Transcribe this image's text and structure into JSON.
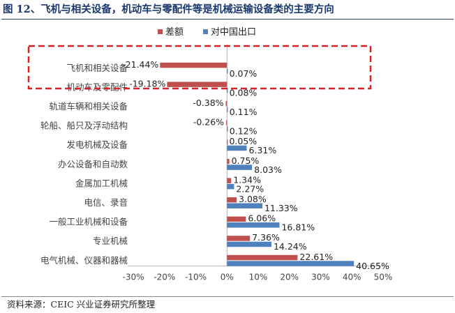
{
  "title": "图 12、飞机与相关设备，机动车与零配件等是机械运输设备类的主要方向",
  "source": "资料来源：CEIC    兴业证券研究所整理",
  "colors": {
    "deficit": "#c0504d",
    "export": "#4f81bd",
    "highlight": "#e02020",
    "title": "#1a3a6e"
  },
  "chart_data": {
    "type": "bar",
    "orientation": "horizontal",
    "title": "",
    "xlabel": "",
    "ylabel": "",
    "categories": [
      "飞机和相关设备",
      "机动车及零配件",
      "轨道车辆和相关设备",
      "轮船、船只及浮动结构",
      "发电机械及设备",
      "办公设备和自动数",
      "金属加工机械",
      "电信、录音",
      "一般工业机械和设备",
      "专业机械",
      "电气机械、仪器和器械"
    ],
    "series": [
      {
        "name": "差额",
        "values": [
          -21.44,
          -19.18,
          -0.38,
          -0.26,
          0.05,
          0.75,
          1.34,
          3.08,
          6.06,
          7.36,
          22.61
        ],
        "labels": [
          "-21.44%",
          "-19.18%",
          "-0.38%",
          "-0.26%",
          "0.05%",
          "0.75%",
          "1.34%",
          "3.08%",
          "6.06%",
          "7.36%",
          "22.61%"
        ]
      },
      {
        "name": "对中国出口",
        "values": [
          0.07,
          0.08,
          0.11,
          0.12,
          6.31,
          8.03,
          2.27,
          11.33,
          16.81,
          14.24,
          40.65
        ],
        "labels": [
          "0.07%",
          "0.08%",
          "0.11%",
          "0.12%",
          "6.31%",
          "8.03%",
          "2.27%",
          "11.33%",
          "16.81%",
          "14.24%",
          "40.65%"
        ]
      }
    ],
    "xlim": [
      -30,
      50
    ],
    "xticks": [
      -30,
      -20,
      -10,
      0,
      10,
      20,
      30,
      40,
      50
    ],
    "xtick_labels": [
      "-30%",
      "-20%",
      "-10%",
      "0%",
      "10%",
      "20%",
      "30%",
      "40%",
      "50%"
    ],
    "grid": false,
    "legend": "top",
    "highlight": {
      "categories": [
        "飞机和相关设备",
        "机动车及零配件"
      ],
      "style": "dashed-box"
    }
  }
}
